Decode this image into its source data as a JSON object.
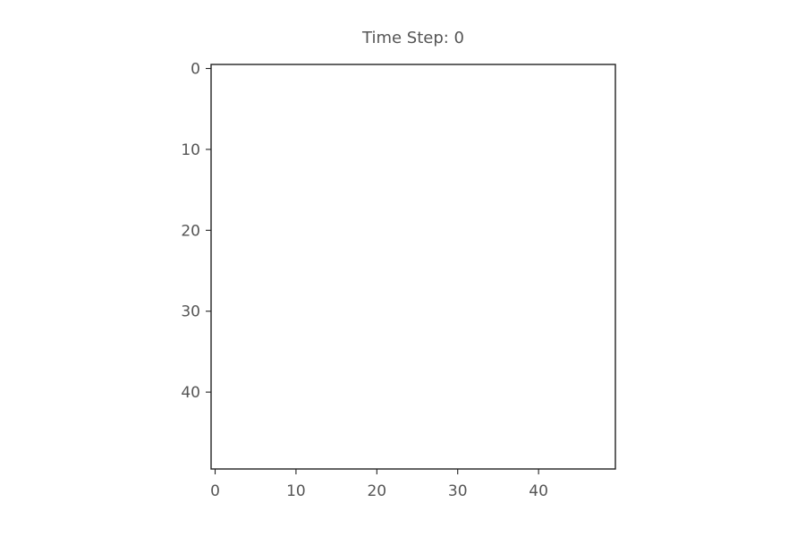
{
  "chart_data": {
    "type": "heatmap",
    "title": "Time Step: 0",
    "xlabel": "",
    "ylabel": "",
    "grid": false,
    "xlim": [
      -0.5,
      49.5
    ],
    "ylim": [
      49.5,
      -0.5
    ],
    "y_inverted": true,
    "xticks": [
      0,
      10,
      20,
      30,
      40
    ],
    "yticks": [
      0,
      10,
      20,
      30,
      40
    ],
    "grid_size": [
      50,
      50
    ],
    "values": "all cells empty (blank white field)",
    "colors": {
      "background": "#ffffff",
      "frame": "#222222",
      "text": "#555555"
    }
  }
}
